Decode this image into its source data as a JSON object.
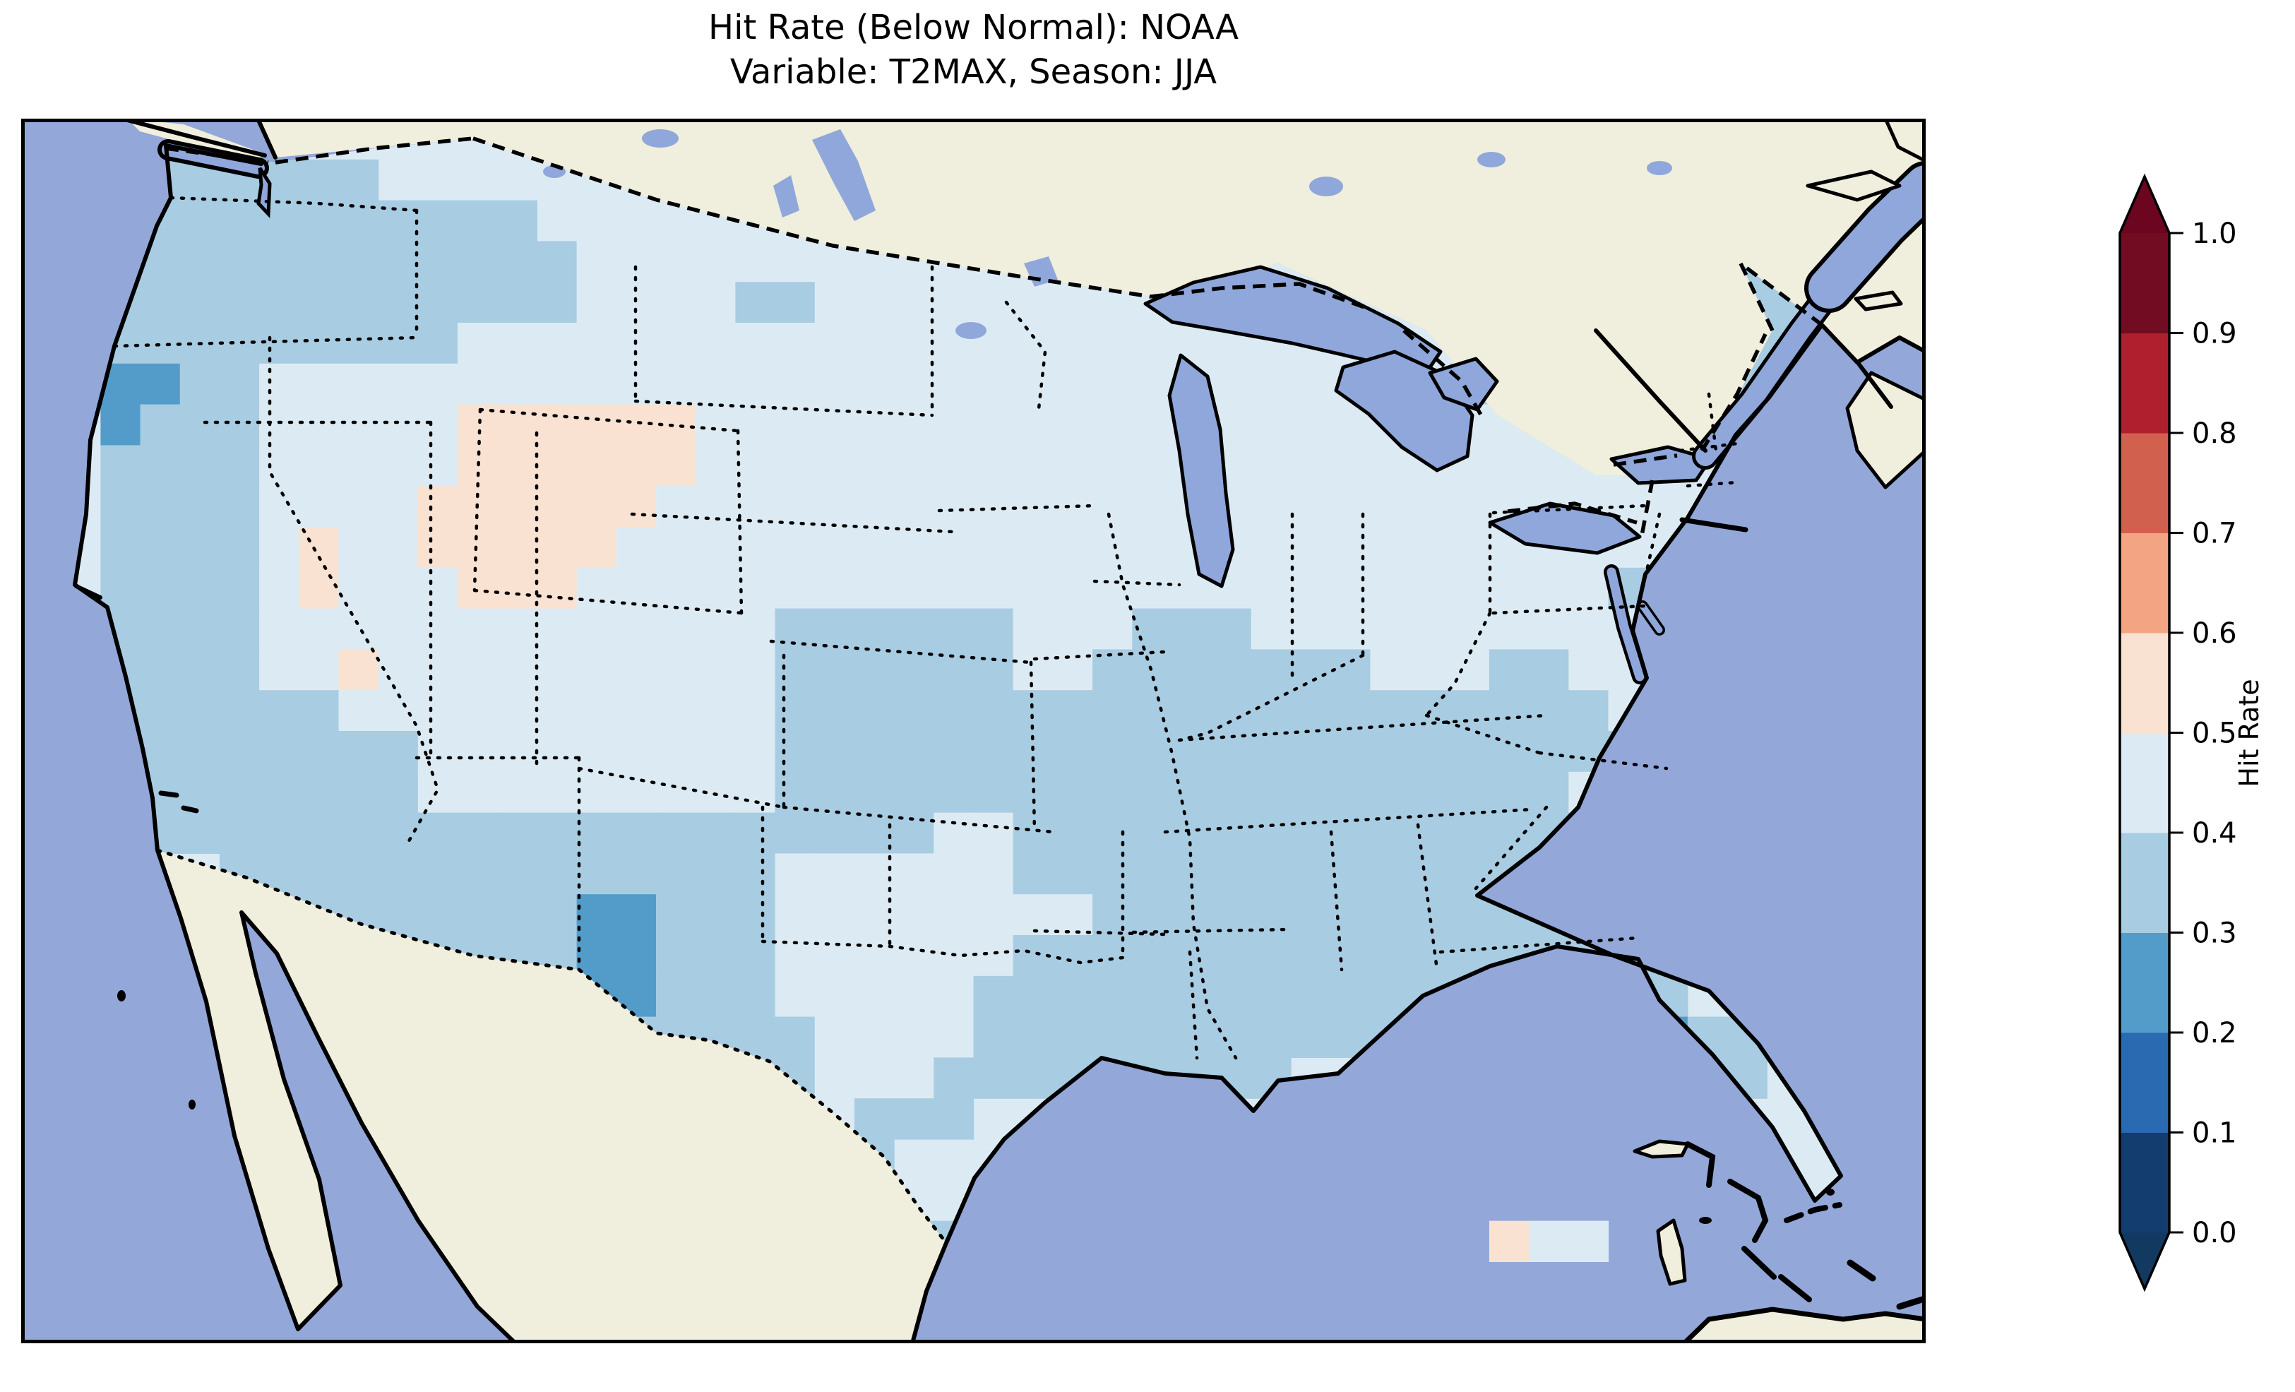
{
  "palette": {
    "ocean": "#93a8d8",
    "water": "#8fa7da",
    "land_other": "#f0eedc",
    "coastline": "#000000",
    "figure_background": "#ffffff"
  },
  "title": {
    "line1": "Hit Rate (Below Normal): NOAA",
    "line2": "Variable: T2MAX, Season: JJA"
  },
  "colorbar": {
    "label": "Hit Rate",
    "ticks": [
      "0.0",
      "0.1",
      "0.2",
      "0.3",
      "0.4",
      "0.5",
      "0.6",
      "0.7",
      "0.8",
      "0.9",
      "1.0"
    ],
    "bin_colors": [
      "#123d6e",
      "#2a6ab0",
      "#539cc9",
      "#a8cce2",
      "#dcebf3",
      "#f9e2d2",
      "#f3a583",
      "#d2604e",
      "#b01f2e",
      "#710c22"
    ],
    "under_color": "#12395f",
    "over_color": "#6b0520"
  },
  "chart_data": {
    "type": "heatmap",
    "title": "Hit Rate (Below Normal): NOAA",
    "subtitle": "Variable: T2MAX, Season: JJA",
    "source": "NOAA",
    "variable": "T2MAX",
    "season": "JJA",
    "metric": "Hit Rate (Below Normal)",
    "region": "Continental United States",
    "legend_position": "right",
    "value_range": [
      0.0,
      1.0
    ],
    "bins": [
      {
        "range": "0.0-0.1",
        "color": "#123d6e"
      },
      {
        "range": "0.1-0.2",
        "color": "#2a6ab0"
      },
      {
        "range": "0.2-0.3",
        "color": "#539cc9"
      },
      {
        "range": "0.3-0.4",
        "color": "#a8cce2"
      },
      {
        "range": "0.4-0.5",
        "color": "#dcebf3"
      },
      {
        "range": "0.5-0.6",
        "color": "#f9e2d2"
      },
      {
        "range": "0.6-0.7",
        "color": "#f3a583"
      },
      {
        "range": "0.7-0.8",
        "color": "#d2604e"
      },
      {
        "range": "0.8-0.9",
        "color": "#b01f2e"
      },
      {
        "range": "0.9-1.0",
        "color": "#710c22"
      }
    ],
    "summary": "Hit rates over CONUS are mostly 0.3-0.5 (light blues); a 0.5-0.6 (pale pink) patch covers SW Wyoming / NE Utah with specks in Nevada and Pennsylvania; small 0.2-0.3 (darker blue) patches on the N. California coast, south-central New Mexico and north Florida.",
    "cell_colors": {
      "b": "#539cc9",
      "c": "#a8cce2",
      "d": "#dcebf3",
      "e": "#f9e2d2"
    },
    "grid": {
      "cols": 48,
      "rows": 30,
      "encoding": "run-length rows; b=0.2-0.3, c=0.3-0.4, d=0.4-0.5, e=0.5-0.6, .=none (base fill 0.4-0.5)",
      "rows_rle": [
        "3.,3c,42.",
        "3.,6c,39.",
        "3.,10c,35.",
        "2.,12c,10d,18.,2c,4.",
        "2.,12c,4d,2c,5d,17.,3c,3.",
        "2.,9c,20d,6.,4c,1d,3c,3.",
        "2.,2b,2c,26d,4.,5c,2d,1c,4.",
        "2.,1b,3c,5d,6e,14d,1.,2d,1.,8d,5.",
        "2.,4c,5d,6e,17d,1.,8d,5.",
        "2.,4c,4d,6e,18d,1.,8d,5.",
        "2.,4c,1d,1e,2d,5e,19d,1.,8d,5.",
        "2.,4c,1d,1e,3d,3e,20d,1.,5d,3c,5.",
        "2.,4c,13d,6c,3d,3c,3d,1.,8d,5.",
        "2.,4c,2d,1e,10d,6c,2d,7c,3d,2c,4d,5.",
        "2.,6c,11d,21c,2d,1c,5.",
        "3.,7c,9d,24c,5.",
        "3.,7c,9d,20c,2d,2c,5.",
        "3.,20c,2d,17c,6.",
        "5.,14c,6d,18c,5.",
        "6.,8c,2b,3c,8d,16c,5.",
        "9.,5c,2b,3c,6d,19c,4.",
        "13.,1c,2b,3c,5d,18c,6.",
        "15.,5c,4d,17c,1b,2c,4.",
        "16.,4c,3d,9c,9.,3c,4.",
        "17.,2c,2d,3c,16.,3c,5.",
        "19.,3c,18.,2c,6.",
        "20.,2c,18.,1c,7.",
        "22.,2c,24.",
        "48.",
        "48."
      ],
      "extra_cells": [
        {
          "col": 37,
          "row": 27,
          "key": "e"
        },
        {
          "col": 38,
          "row": 27,
          "key": "d"
        },
        {
          "col": 39,
          "row": 27,
          "key": "d"
        }
      ]
    }
  }
}
